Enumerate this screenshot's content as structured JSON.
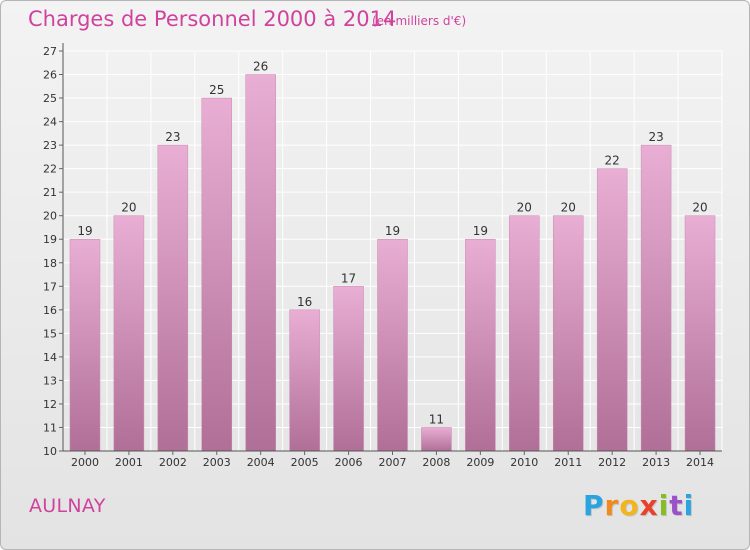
{
  "header": {
    "title": "Charges de Personnel 2000 à 2014",
    "subtitle": "(en milliers d'€)"
  },
  "footer": {
    "town": "AULNAY",
    "logo_letters": [
      "P",
      "r",
      "o",
      "x",
      "i",
      "t",
      "i"
    ],
    "logo_colors": [
      "#2aa4e0",
      "#f08a1c",
      "#f2b51c",
      "#e8412c",
      "#86bc25",
      "#9b51c9",
      "#2aa4e0"
    ]
  },
  "chart_data": {
    "type": "bar",
    "title": "Charges de Personnel 2000 à 2014",
    "xlabel": "",
    "ylabel": "",
    "categories": [
      "2000",
      "2001",
      "2002",
      "2003",
      "2004",
      "2005",
      "2006",
      "2007",
      "2008",
      "2009",
      "2010",
      "2011",
      "2012",
      "2013",
      "2014"
    ],
    "values": [
      19,
      20,
      23,
      25,
      26,
      16,
      17,
      19,
      11,
      19,
      20,
      20,
      22,
      23,
      20
    ],
    "ylim": [
      10,
      27
    ],
    "yticks": [
      10,
      11,
      12,
      13,
      14,
      15,
      16,
      17,
      18,
      19,
      20,
      21,
      22,
      23,
      24,
      25,
      26,
      27
    ],
    "grid": true,
    "bar_color_top": "#e9aed4",
    "bar_color_bottom": "#b06f97"
  }
}
